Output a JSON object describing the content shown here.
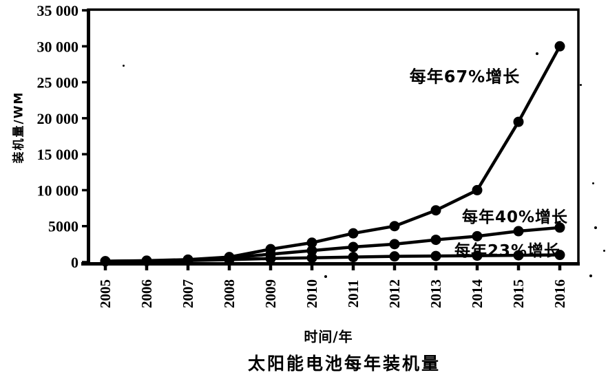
{
  "chart_data": {
    "type": "line",
    "title": "太阳能电池每年装机量",
    "xlabel": "时间/年",
    "ylabel": "装机量/WM",
    "x": [
      "2005",
      "2006",
      "2007",
      "2008",
      "2009",
      "2010",
      "2011",
      "2012",
      "2013",
      "2014",
      "2015",
      "2016"
    ],
    "ylim": [
      0,
      35000
    ],
    "ytick_values": [
      0,
      5000,
      10000,
      15000,
      20000,
      25000,
      30000,
      35000
    ],
    "ytick_labels": [
      "0",
      "5000",
      "10 000",
      "15 000",
      "20 000",
      "25 000",
      "30 000",
      "35 000"
    ],
    "grid": false,
    "legend_position": "none",
    "line_color": "#000000",
    "marker": "circle",
    "series": [
      {
        "name": "每年67%增长",
        "values": [
          120,
          200,
          350,
          700,
          1800,
          2700,
          4000,
          5000,
          7200,
          10000,
          19500,
          30000
        ]
      },
      {
        "name": "每年40%增长",
        "values": [
          120,
          180,
          300,
          600,
          1100,
          1600,
          2100,
          2500,
          3100,
          3600,
          4300,
          4800
        ]
      },
      {
        "name": "每年23%增长",
        "values": [
          120,
          150,
          220,
          350,
          500,
          600,
          700,
          800,
          850,
          900,
          950,
          1000
        ]
      }
    ],
    "annotations": [
      {
        "text": "每年67%增长"
      },
      {
        "text": "每年40%增长"
      },
      {
        "text": "每年23%增长"
      }
    ]
  }
}
